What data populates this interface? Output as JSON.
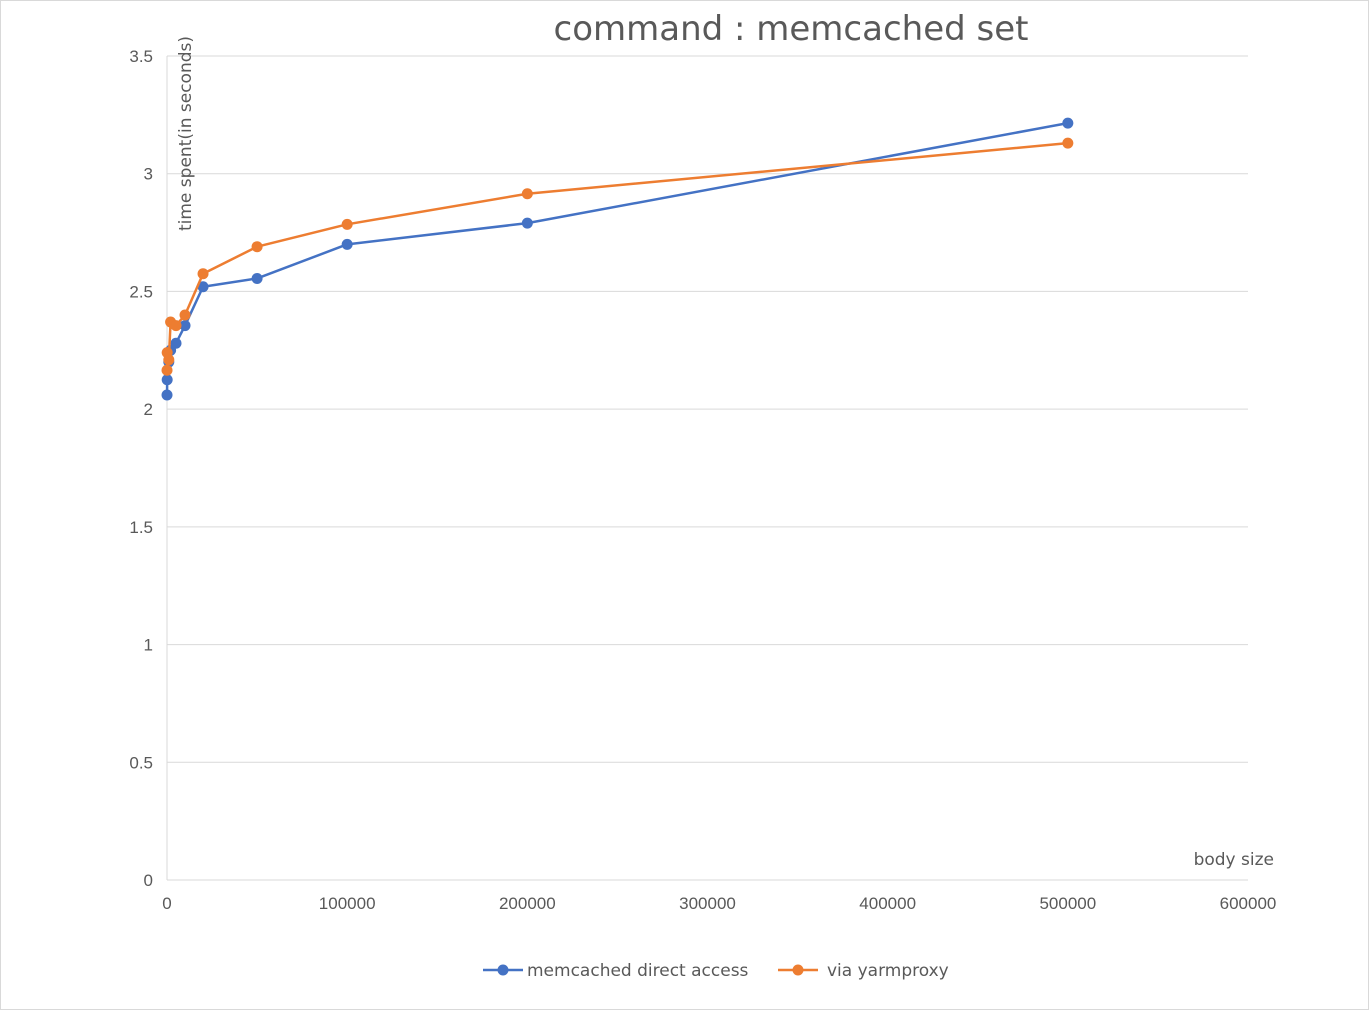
{
  "chart_data": {
    "type": "scatter",
    "title": "command : memcached set",
    "xlabel": "body size",
    "ylabel": "time spent(in seconds)",
    "xlim": [
      0,
      600000
    ],
    "ylim": [
      0,
      3.5
    ],
    "x_ticks": [
      "0",
      "100000",
      "200000",
      "300000",
      "400000",
      "500000",
      "600000"
    ],
    "y_ticks": [
      "0",
      "0.5",
      "1",
      "1.5",
      "2",
      "2.5",
      "3",
      "3.5"
    ],
    "grid": "horizontal",
    "legend_position": "bottom",
    "colors": {
      "series0": "#4472c4",
      "series1": "#ed7d31",
      "grid": "#d9d9d9",
      "text": "#595959"
    },
    "series": [
      {
        "name": "memcached direct access",
        "points": [
          [
            10,
            2.06
          ],
          [
            100,
            2.125
          ],
          [
            1000,
            2.2
          ],
          [
            2000,
            2.25
          ],
          [
            5000,
            2.28
          ],
          [
            10000,
            2.355
          ],
          [
            20000,
            2.52
          ],
          [
            50000,
            2.555
          ],
          [
            100000,
            2.7
          ],
          [
            200000,
            2.79
          ],
          [
            500000,
            3.215
          ]
        ]
      },
      {
        "name": "via yarmproxy",
        "points": [
          [
            10,
            2.165
          ],
          [
            100,
            2.24
          ],
          [
            1000,
            2.21
          ],
          [
            2000,
            2.37
          ],
          [
            5000,
            2.355
          ],
          [
            10000,
            2.4
          ],
          [
            20000,
            2.575
          ],
          [
            50000,
            2.69
          ],
          [
            100000,
            2.785
          ],
          [
            200000,
            2.915
          ],
          [
            500000,
            3.13
          ]
        ]
      }
    ]
  }
}
